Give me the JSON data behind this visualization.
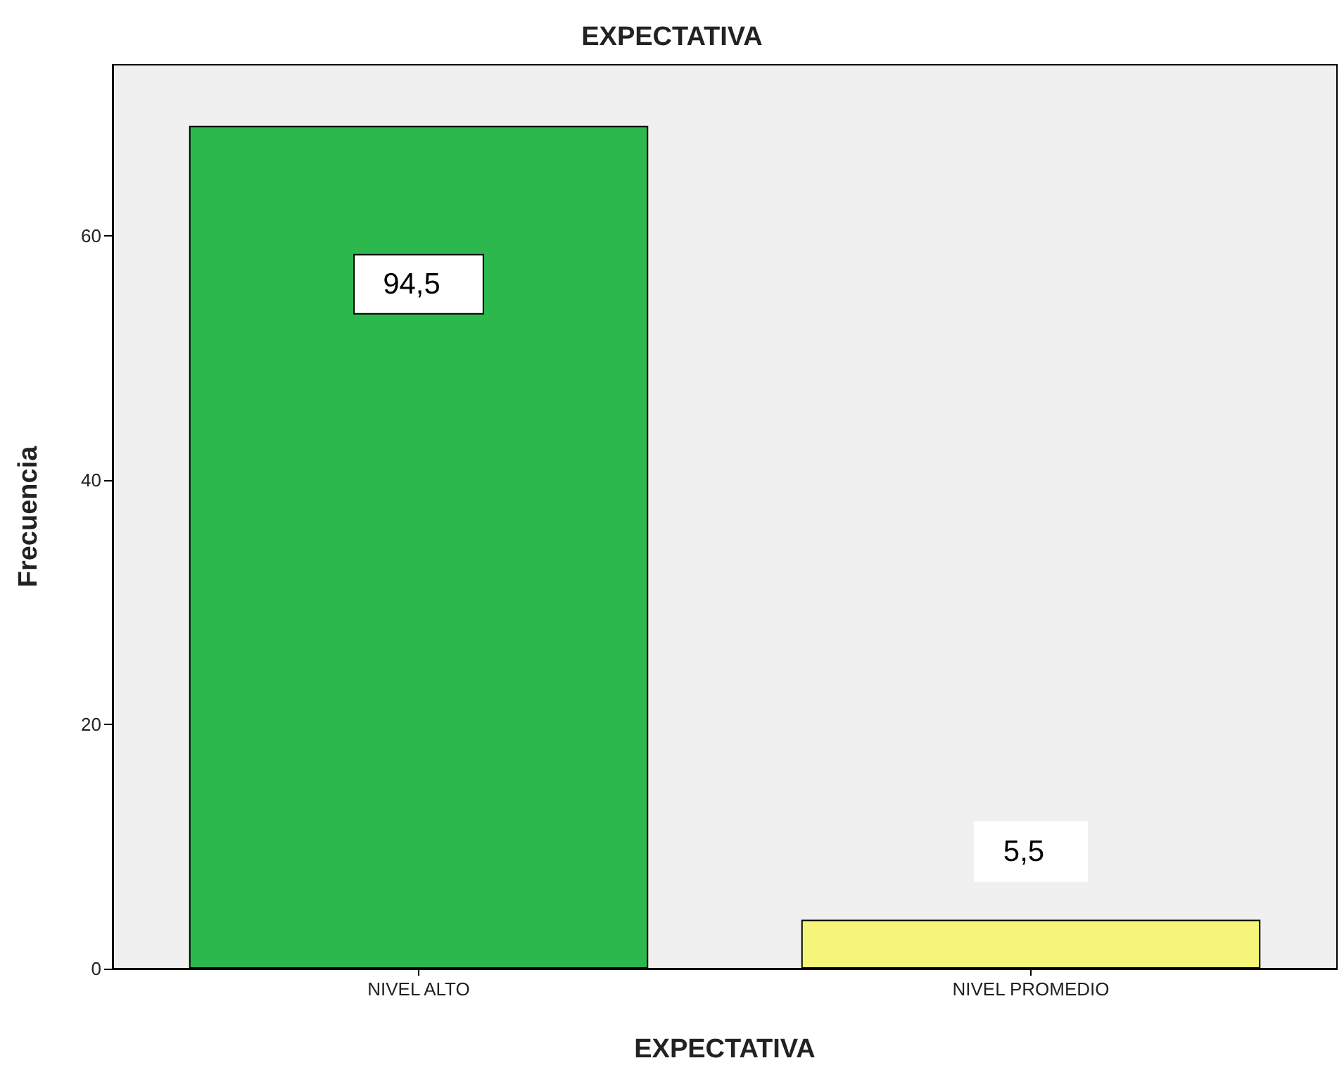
{
  "chart_data": {
    "type": "bar",
    "title": "EXPECTATIVA",
    "xlabel": "EXPECTATIVA",
    "ylabel": "Frecuencia",
    "categories": [
      "NIVEL ALTO",
      "NIVEL PROMEDIO"
    ],
    "values": [
      69,
      4
    ],
    "colors": [
      "#2db84d",
      "#f5f57a"
    ],
    "ylim": [
      0,
      74
    ],
    "yticks": [
      0,
      20,
      40,
      60
    ],
    "annotations": [
      "94,5",
      "5,5"
    ],
    "grid": false
  }
}
